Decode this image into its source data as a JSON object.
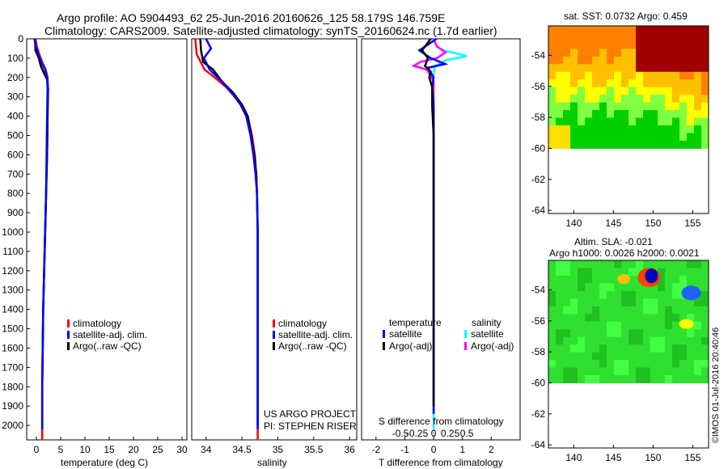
{
  "header": {
    "line1": "Argo profile: AO 5904493_62 25-Jun-2016 20160626_125 58.179S 146.759E",
    "line2": "Climatology: CARS2009. Satellite-adjusted climatology: synTS_20160624.nc (1.7d earlier)"
  },
  "colors": {
    "climatology": "#ff0000",
    "satellite": "#0000ff",
    "argo": "#000000",
    "sal_satellite": "#00ffff",
    "sal_argo": "#ff00ff"
  },
  "chart_data": [
    {
      "type": "line",
      "panel": "temperature",
      "xlabel": "temperature (deg C)",
      "ylabel": "",
      "xlim": [
        -2,
        31
      ],
      "ylim": [
        2075,
        0
      ],
      "xticks": [
        "0",
        "5",
        "10",
        "15",
        "20",
        "25",
        "30"
      ],
      "xtick_values": [
        0,
        5,
        10,
        15,
        20,
        25,
        30
      ],
      "yticks": [
        "0",
        "100",
        "200",
        "300",
        "400",
        "500",
        "600",
        "700",
        "800",
        "900",
        "1000",
        "1100",
        "1200",
        "1300",
        "1400",
        "1500",
        "1600",
        "1700",
        "1800",
        "1900",
        "2000"
      ],
      "ytick_values": [
        0,
        100,
        200,
        300,
        400,
        500,
        600,
        700,
        800,
        900,
        1000,
        1100,
        1200,
        1300,
        1400,
        1500,
        1600,
        1700,
        1800,
        1900,
        2000
      ],
      "legend": [
        "climatology",
        "satellite-adj. clim.",
        "Argo(..raw -QC)"
      ],
      "series": [
        {
          "name": "climatology",
          "x": [
            -0.2,
            0.1,
            0.6,
            1.2,
            1.9,
            2.3,
            2.4,
            2.3,
            2.2,
            2.0,
            1.8,
            1.6,
            1.4,
            1.3,
            1.2,
            1.2
          ],
          "y": [
            0,
            40,
            80,
            120,
            160,
            200,
            260,
            400,
            600,
            800,
            1000,
            1200,
            1400,
            1600,
            1800,
            2075
          ]
        },
        {
          "name": "satellite-adj. clim.",
          "x": [
            -0.4,
            -0.1,
            0.4,
            1.0,
            1.8,
            2.2,
            2.3,
            2.2,
            2.1,
            2.0,
            1.8,
            1.6,
            1.4,
            1.3,
            1.2,
            1.2
          ],
          "y": [
            0,
            40,
            80,
            120,
            160,
            200,
            260,
            400,
            600,
            800,
            1000,
            1200,
            1400,
            1600,
            1800,
            2020
          ]
        },
        {
          "name": "Argo(..raw -QC)",
          "x": [
            -0.3,
            -0.2,
            0.5,
            0.9,
            1.6,
            2.2,
            2.4,
            2.3,
            2.2,
            2.0,
            1.8,
            1.6,
            1.4,
            1.3,
            1.2,
            1.2
          ],
          "y": [
            0,
            60,
            100,
            140,
            180,
            210,
            260,
            400,
            600,
            800,
            1000,
            1200,
            1400,
            1600,
            1800,
            2000
          ]
        }
      ]
    },
    {
      "type": "line",
      "panel": "salinity",
      "xlabel": "salinity",
      "ylabel": "",
      "xlim": [
        33.8,
        36.1
      ],
      "ylim": [
        2075,
        0
      ],
      "xticks": [
        "34",
        "34.5",
        "35",
        "35.5",
        "36"
      ],
      "xtick_values": [
        34,
        34.5,
        35,
        35.5,
        36
      ],
      "legend": [
        "climatology",
        "satellite-adj. clim.",
        "Argo(..raw -QC)"
      ],
      "annotation": [
        "US ARGO PROJECT",
        "PI: STEPHEN RISER"
      ],
      "series": [
        {
          "name": "climatology",
          "x": [
            33.85,
            33.87,
            33.98,
            34.12,
            34.28,
            34.4,
            34.5,
            34.58,
            34.64,
            34.68,
            34.7,
            34.71,
            34.72,
            34.72,
            34.72,
            34.72,
            34.72
          ],
          "y": [
            0,
            80,
            160,
            200,
            250,
            300,
            350,
            400,
            500,
            600,
            700,
            800,
            1000,
            1200,
            1500,
            1800,
            2075
          ]
        },
        {
          "name": "satellite-adj. clim.",
          "x": [
            34.0,
            34.07,
            33.97,
            34.05,
            34.22,
            34.36,
            34.48,
            34.56,
            34.62,
            34.66,
            34.69,
            34.71,
            34.72,
            34.72,
            34.72,
            34.72,
            34.72
          ],
          "y": [
            0,
            50,
            100,
            160,
            220,
            280,
            340,
            400,
            500,
            600,
            700,
            800,
            1000,
            1200,
            1500,
            1800,
            2020
          ]
        },
        {
          "name": "Argo(..raw -QC)",
          "x": [
            33.92,
            33.93,
            33.96,
            34.1,
            34.22,
            34.38,
            34.5,
            34.58,
            34.63,
            34.67,
            34.7,
            34.71,
            34.72,
            34.72,
            34.72,
            34.72,
            34.72
          ],
          "y": [
            0,
            60,
            120,
            160,
            220,
            280,
            340,
            400,
            500,
            600,
            700,
            800,
            1000,
            1200,
            1500,
            1800,
            2000
          ]
        }
      ]
    },
    {
      "type": "line",
      "panel": "difference",
      "xlabel": "T difference from climatology",
      "top_label": "S difference from climatology",
      "xlim": [
        -2.5,
        3.0
      ],
      "ylim": [
        2075,
        0
      ],
      "xticks": [
        "-2",
        "-1",
        "0",
        "1",
        "2"
      ],
      "xtick_values": [
        -2,
        -1,
        0,
        1,
        2
      ],
      "sticks": [
        "-0.5",
        "-0.25",
        "0",
        "0.25",
        "0.5"
      ],
      "stick_values": [
        -0.5,
        -0.25,
        0,
        0.25,
        0.5
      ],
      "legend_titles": [
        "temperature",
        "salinity"
      ],
      "legend": [
        "satellite",
        "Argo(-adj)",
        "satellite",
        "Argo(-adj)"
      ],
      "series": [
        {
          "name": "T satellite",
          "x": [
            0.1,
            -0.5,
            -0.1,
            0.4,
            -0.2,
            0.0,
            -0.05,
            0.0,
            0.0,
            0.0,
            0.0,
            0.0,
            0.0
          ],
          "y": [
            0,
            60,
            100,
            130,
            150,
            200,
            250,
            350,
            500,
            800,
            1200,
            1600,
            1940
          ]
        },
        {
          "name": "T Argo(-adj)",
          "x": [
            -0.1,
            -0.4,
            -0.2,
            -0.3,
            -0.1,
            -0.15,
            -0.05,
            -0.05,
            0.0,
            0.0,
            0.0,
            0.0,
            0.0
          ],
          "y": [
            0,
            60,
            100,
            140,
            170,
            200,
            250,
            350,
            500,
            800,
            1200,
            1600,
            1900
          ]
        },
        {
          "name": "S satellite",
          "x": [
            0.0,
            0.05,
            0.15,
            0.4,
            0.5,
            0.2,
            0.02,
            -0.01,
            0.0,
            0.0,
            0.0,
            0.0,
            0.0
          ],
          "y": [
            0,
            40,
            60,
            80,
            90,
            110,
            140,
            200,
            400,
            700,
            1200,
            1600,
            2020
          ]
        },
        {
          "name": "S Argo(-adj)",
          "x": [
            0.0,
            0.05,
            0.18,
            0.05,
            -0.08,
            -0.2,
            -0.3,
            -0.1,
            0.0,
            0.0,
            0.0,
            0.0,
            0.0
          ],
          "y": [
            0,
            40,
            70,
            100,
            110,
            120,
            140,
            160,
            220,
            400,
            800,
            1400,
            1940
          ]
        }
      ]
    },
    {
      "type": "heatmap",
      "panel": "sst-map",
      "title": "sat. SST: 0.0732 Argo: 0.459",
      "xticks": [
        "140",
        "145",
        "150",
        "155"
      ],
      "xtick_values": [
        140,
        145,
        150,
        155
      ],
      "yticks": [
        "-54",
        "-56",
        "-58",
        "-60",
        "-62",
        "-64"
      ],
      "ytick_values": [
        -54,
        -56,
        -58,
        -60,
        -62,
        -64
      ],
      "xlim": [
        136.8,
        157
      ],
      "ylim": [
        -64.2,
        -52.1
      ],
      "data_ylim": [
        -60,
        -52.1
      ]
    },
    {
      "type": "heatmap",
      "panel": "sla-map",
      "title_line1": "Altim. SLA: -0.021",
      "title_line2": "Argo h1000: 0.0026 h2000: 0.0021",
      "xticks": [
        "140",
        "145",
        "150",
        "155"
      ],
      "xtick_values": [
        140,
        145,
        150,
        155
      ],
      "yticks": [
        "-54",
        "-56",
        "-58",
        "-60",
        "-62",
        "-64"
      ],
      "ytick_values": [
        -54,
        -56,
        -58,
        -60,
        -62,
        -64
      ],
      "xlim": [
        136.8,
        157
      ],
      "ylim": [
        -64.2,
        -52.1
      ],
      "data_ylim": [
        -60,
        -52.1
      ]
    }
  ],
  "footer": {
    "credit": "©IMOS 01-Jul-2016 20:40:46"
  }
}
